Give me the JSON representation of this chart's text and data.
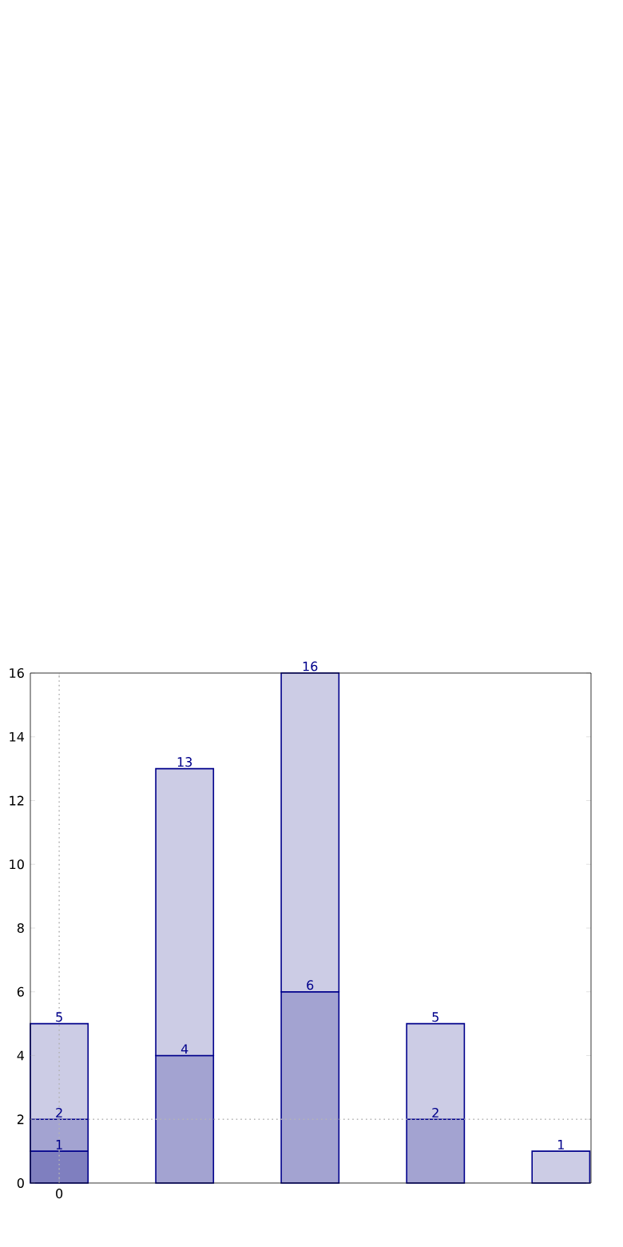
{
  "chart_data": {
    "type": "bar",
    "categories": [
      "0",
      null,
      null,
      null,
      null
    ],
    "ylim": [
      0,
      16
    ],
    "yticks": [
      {
        "value": 0,
        "label": "0"
      },
      {
        "value": 2,
        "label": "2"
      },
      {
        "value": 4,
        "label": "4"
      },
      {
        "value": 6,
        "label": "6"
      },
      {
        "value": 8,
        "label": "8"
      },
      {
        "value": 10,
        "label": "10"
      },
      {
        "value": 12,
        "label": "12"
      },
      {
        "value": 14,
        "label": "14"
      },
      {
        "value": 16,
        "label": "16"
      }
    ],
    "series": [
      {
        "color": "#7f7fbf",
        "values": [
          1,
          null,
          null,
          null,
          null
        ],
        "value_labels": [
          "1",
          null,
          null,
          null,
          null
        ]
      },
      {
        "color": "#a3a3d1",
        "values": [
          1,
          4,
          6,
          2,
          null
        ],
        "value_labels": [
          null,
          "4",
          "6",
          "2",
          null
        ]
      },
      {
        "color": "#ccccE5",
        "values": [
          3,
          9,
          10,
          3,
          1
        ]
      }
    ],
    "stacked": true,
    "totals": [
      "5",
      "13",
      "16",
      "5",
      "1"
    ],
    "annotations": [
      {
        "text": "2",
        "x": "0",
        "y": 2
      }
    ],
    "ref_lines": [
      {
        "axis": "x",
        "value": "0",
        "color": "#b4b4b4",
        "line_style": "dotted"
      },
      {
        "axis": "y",
        "value": 2,
        "color": "#b4b4b4",
        "line_style": "dotted"
      }
    ]
  }
}
